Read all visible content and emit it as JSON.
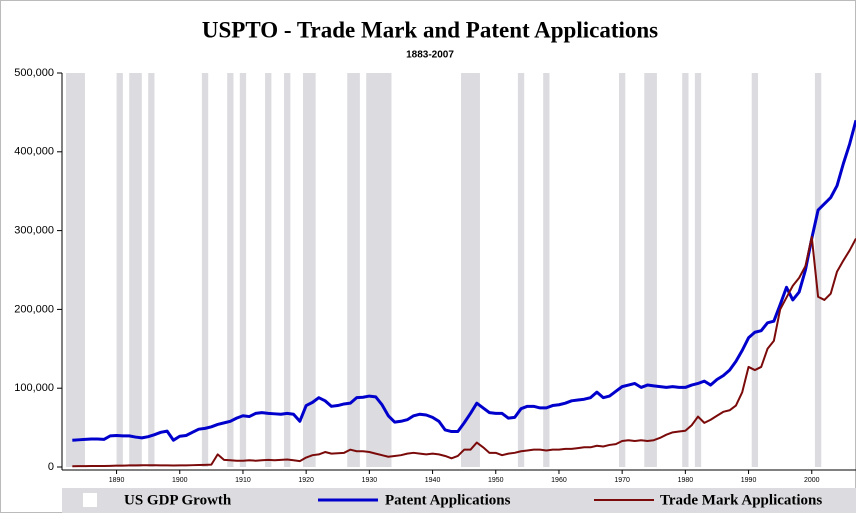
{
  "chart_data": {
    "type": "line",
    "title": "USPTO - Trade Mark and Patent Applications",
    "subtitle": "1883-2007",
    "x": [
      1883,
      1884,
      1885,
      1886,
      1887,
      1888,
      1889,
      1890,
      1891,
      1892,
      1893,
      1894,
      1895,
      1896,
      1897,
      1898,
      1899,
      1900,
      1901,
      1902,
      1903,
      1904,
      1905,
      1906,
      1907,
      1908,
      1909,
      1910,
      1911,
      1912,
      1913,
      1914,
      1915,
      1916,
      1917,
      1918,
      1919,
      1920,
      1921,
      1922,
      1923,
      1924,
      1925,
      1926,
      1927,
      1928,
      1929,
      1930,
      1931,
      1932,
      1933,
      1934,
      1935,
      1936,
      1937,
      1938,
      1939,
      1940,
      1941,
      1942,
      1943,
      1944,
      1945,
      1946,
      1947,
      1948,
      1949,
      1950,
      1951,
      1952,
      1953,
      1954,
      1955,
      1956,
      1957,
      1958,
      1959,
      1960,
      1961,
      1962,
      1963,
      1964,
      1965,
      1966,
      1967,
      1968,
      1969,
      1970,
      1971,
      1972,
      1973,
      1974,
      1975,
      1976,
      1977,
      1978,
      1979,
      1980,
      1981,
      1982,
      1983,
      1984,
      1985,
      1986,
      1987,
      1988,
      1989,
      1990,
      1991,
      1992,
      1993,
      1994,
      1995,
      1996,
      1997,
      1998,
      1999,
      2000,
      2001,
      2002,
      2003,
      2004,
      2005,
      2006,
      2007
    ],
    "series": [
      {
        "name": "Patent Applications",
        "color": "#0000cc",
        "values": [
          34000,
          34500,
          35000,
          35500,
          35500,
          35000,
          39500,
          40000,
          39500,
          39500,
          38000,
          37000,
          38500,
          41000,
          44000,
          45500,
          34000,
          39000,
          40000,
          44000,
          48000,
          49000,
          51000,
          54000,
          56000,
          58000,
          62000,
          65000,
          64000,
          68000,
          69000,
          68000,
          67500,
          67000,
          68000,
          67000,
          58000,
          78000,
          82000,
          88000,
          84000,
          77000,
          78000,
          80000,
          81000,
          88000,
          88500,
          90000,
          89000,
          79000,
          65000,
          57000,
          58000,
          60000,
          65000,
          67000,
          66000,
          63000,
          58000,
          47000,
          45000,
          45000,
          56000,
          68000,
          81000,
          75000,
          69000,
          68000,
          68000,
          62000,
          63000,
          74000,
          77000,
          77000,
          75000,
          75000,
          78000,
          79000,
          81000,
          84000,
          85000,
          86000,
          88000,
          95000,
          88000,
          90000,
          96000,
          102000,
          104000,
          106000,
          101000,
          104000,
          103000,
          102000,
          101000,
          102000,
          101000,
          101000,
          104000,
          106000,
          109000,
          104000,
          111000,
          116000,
          123000,
          134000,
          148000,
          164000,
          171000,
          173000,
          183000,
          185000,
          206000,
          228000,
          212000,
          222000,
          250000,
          290000,
          326000,
          334000,
          342000,
          357000,
          385000,
          410000,
          440000
        ]
      },
      {
        "name": "Trade Mark Applications",
        "color": "#7b0a0a",
        "values": [
          1000,
          1100,
          1100,
          1200,
          1200,
          1300,
          1500,
          1700,
          1800,
          2000,
          2100,
          2200,
          2200,
          2200,
          2100,
          2000,
          1900,
          2000,
          2100,
          2300,
          2500,
          2700,
          3000,
          16000,
          9000,
          8500,
          8000,
          8000,
          8500,
          8000,
          8500,
          9000,
          8500,
          9000,
          9500,
          8500,
          7500,
          12000,
          15000,
          16000,
          19000,
          17000,
          17500,
          18000,
          22000,
          20000,
          20000,
          19000,
          17000,
          15000,
          13000,
          14000,
          15000,
          17000,
          18000,
          17000,
          16000,
          17000,
          16000,
          14000,
          11000,
          14000,
          22000,
          22000,
          31000,
          25000,
          18000,
          18000,
          15000,
          17000,
          18000,
          20000,
          21000,
          22000,
          22000,
          21000,
          22000,
          22000,
          23000,
          23000,
          24000,
          25000,
          25000,
          27000,
          26000,
          28000,
          29000,
          33000,
          34000,
          33000,
          34000,
          33000,
          34000,
          37000,
          41000,
          44000,
          45000,
          46000,
          53000,
          64000,
          56000,
          60000,
          65000,
          70000,
          72000,
          78000,
          95000,
          127000,
          123000,
          127000,
          150000,
          160000,
          200000,
          215000,
          230000,
          240000,
          255000,
          292000,
          216000,
          212000,
          220000,
          248000,
          262000,
          275000,
          290000
        ]
      }
    ],
    "bands": {
      "name": "US GDP Growth",
      "color": "#dcdce0",
      "spans": [
        [
          1882,
          1885
        ],
        [
          1890,
          1891
        ],
        [
          1892,
          1894
        ],
        [
          1895,
          1896
        ],
        [
          1903.5,
          1904.5
        ],
        [
          1907.5,
          1908.5
        ],
        [
          1909.5,
          1910.5
        ],
        [
          1913.5,
          1914.5
        ],
        [
          1916.5,
          1917.5
        ],
        [
          1919.5,
          1921.5
        ],
        [
          1926.5,
          1928.5
        ],
        [
          1929.5,
          1933.5
        ],
        [
          1944.5,
          1947.5
        ],
        [
          1953.5,
          1954.5
        ],
        [
          1957.5,
          1958.5
        ],
        [
          1969.5,
          1970.5
        ],
        [
          1973.5,
          1975.5
        ],
        [
          1979.5,
          1980.5
        ],
        [
          1981.5,
          1982.5
        ],
        [
          1990.5,
          1991.5
        ],
        [
          2000.5,
          2001.5
        ]
      ]
    },
    "xlim": [
      1882,
      2007
    ],
    "ylim": [
      0,
      500000
    ],
    "xticks": [
      1890,
      1900,
      1910,
      1920,
      1930,
      1940,
      1950,
      1960,
      1970,
      1980,
      1990,
      2000
    ],
    "yticks": [
      0,
      {
        "value": 100000,
        "label": "100,000"
      },
      {
        "value": 200000,
        "label": "200,000"
      },
      {
        "value": 300000,
        "label": "300,000"
      },
      {
        "value": 400000,
        "label": "400,000"
      },
      {
        "value": 500000,
        "label": "500,000"
      }
    ]
  }
}
